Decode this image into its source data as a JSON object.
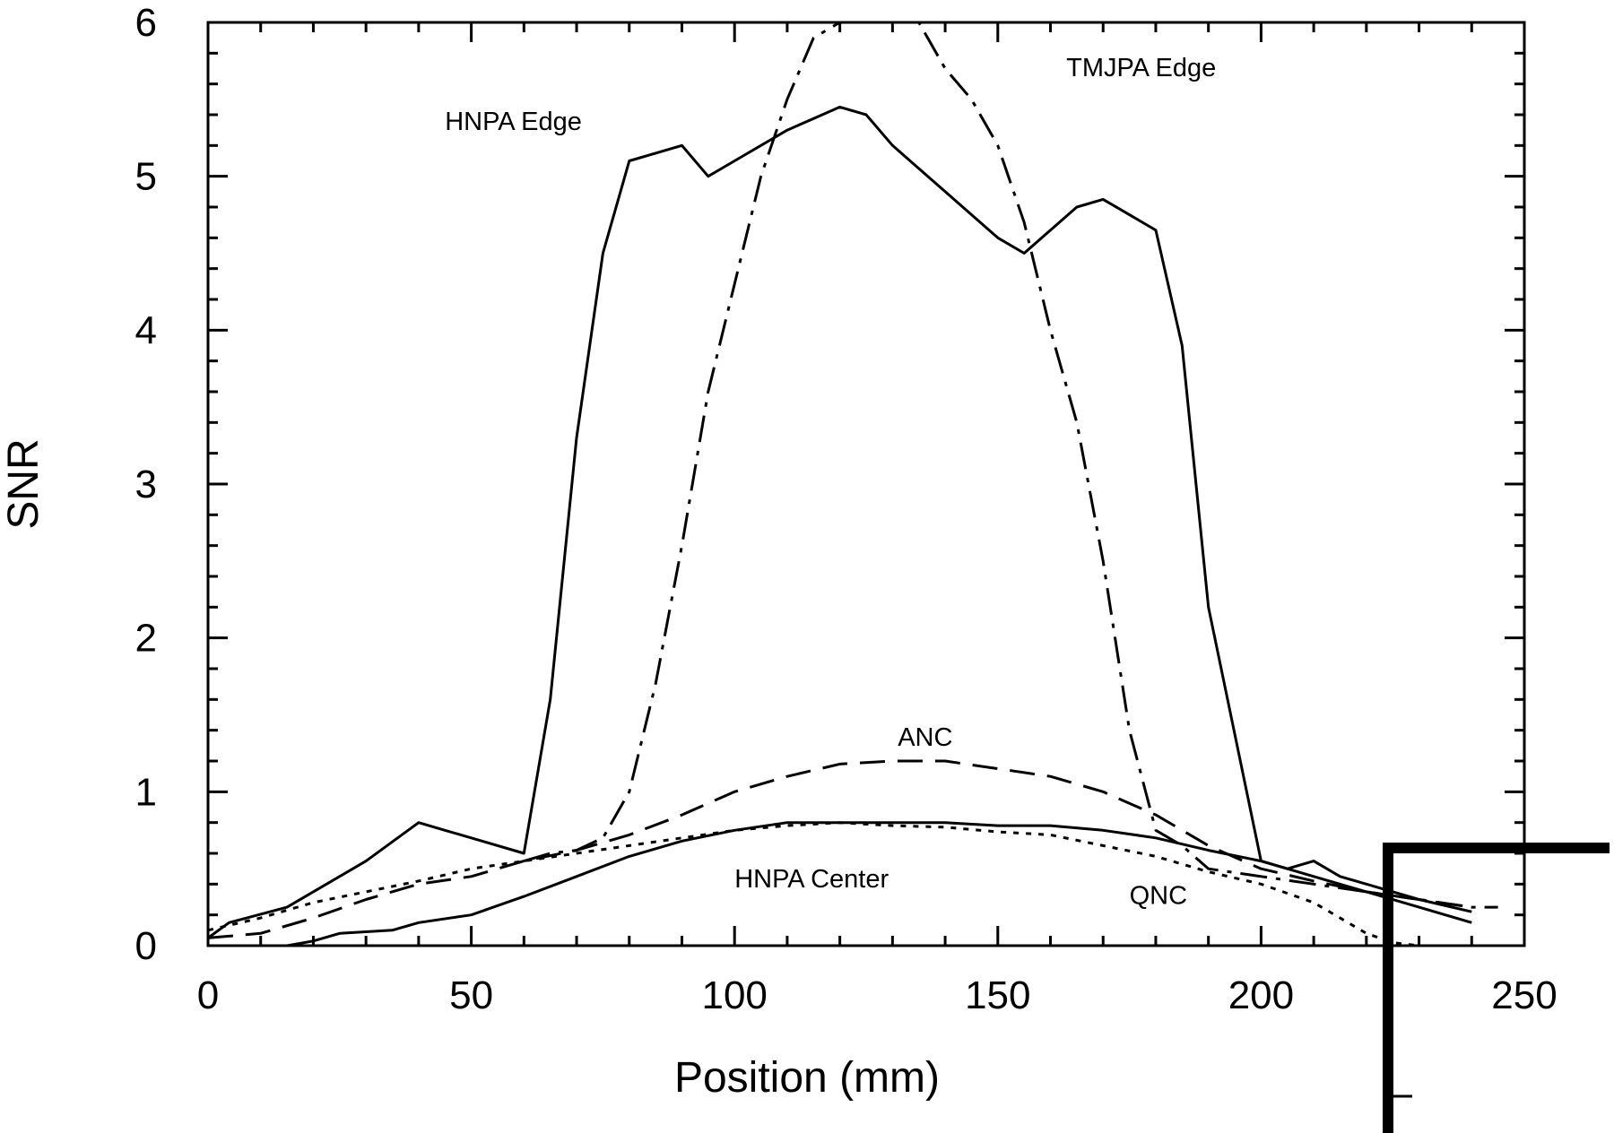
{
  "chart_data": {
    "type": "line",
    "title": "",
    "xlabel": "Position (mm)",
    "ylabel": "SNR",
    "xlim": [
      0,
      250
    ],
    "ylim": [
      0,
      6
    ],
    "x_ticks": [
      0,
      50,
      100,
      150,
      200,
      250
    ],
    "y_ticks": [
      0,
      1,
      2,
      3,
      4,
      5,
      6
    ],
    "x_tick_labels": [
      "0",
      "50",
      "100",
      "150",
      "200",
      "250"
    ],
    "y_tick_labels": [
      "0",
      "1",
      "2",
      "3",
      "4",
      "5",
      "6"
    ],
    "minor_ticks": true,
    "grid": false,
    "legend": "none",
    "line_color": "#000000",
    "series": [
      {
        "name": "HNPA Edge",
        "style": "solid",
        "x": [
          0,
          4,
          15,
          20,
          30,
          40,
          45,
          50,
          60,
          65,
          70,
          75,
          80,
          85,
          90,
          95,
          100,
          110,
          120,
          125,
          130,
          140,
          150,
          155,
          160,
          165,
          170,
          175,
          180,
          185,
          190,
          200,
          205,
          210,
          215,
          220,
          230,
          240
        ],
        "y": [
          0.05,
          0.15,
          0.25,
          0.35,
          0.55,
          0.8,
          0.75,
          0.7,
          0.6,
          1.6,
          3.3,
          4.5,
          5.1,
          5.15,
          5.2,
          5.0,
          5.1,
          5.3,
          5.45,
          5.4,
          5.2,
          4.9,
          4.6,
          4.5,
          4.65,
          4.8,
          4.85,
          4.75,
          4.65,
          3.9,
          2.2,
          0.55,
          0.5,
          0.55,
          0.45,
          0.4,
          0.3,
          0.22
        ]
      },
      {
        "name": "TMJPA Edge",
        "style": "dashdot",
        "x": [
          60,
          65,
          70,
          75,
          80,
          85,
          90,
          95,
          100,
          105,
          110,
          115,
          120,
          125,
          130,
          135,
          140,
          145,
          150,
          155,
          160,
          165,
          170,
          175,
          180,
          185,
          190,
          200,
          210,
          220,
          230,
          240,
          245
        ],
        "y": [
          0.55,
          0.6,
          0.62,
          0.7,
          1.0,
          1.7,
          2.6,
          3.6,
          4.3,
          5.0,
          5.5,
          5.9,
          6.0,
          6.0,
          6.0,
          6.0,
          5.7,
          5.5,
          5.2,
          4.7,
          4.0,
          3.4,
          2.5,
          1.4,
          0.75,
          0.65,
          0.5,
          0.45,
          0.4,
          0.35,
          0.3,
          0.25,
          0.25
        ]
      },
      {
        "name": "ANC",
        "style": "dashed",
        "x": [
          0,
          10,
          20,
          30,
          40,
          50,
          60,
          70,
          80,
          90,
          100,
          110,
          120,
          130,
          140,
          150,
          160,
          170,
          180,
          190,
          200,
          210,
          220,
          230,
          240
        ],
        "y": [
          0.05,
          0.08,
          0.18,
          0.3,
          0.4,
          0.45,
          0.55,
          0.62,
          0.72,
          0.85,
          1.0,
          1.1,
          1.18,
          1.2,
          1.2,
          1.15,
          1.1,
          1.0,
          0.85,
          0.65,
          0.5,
          0.42,
          0.35,
          0.3,
          0.25
        ]
      },
      {
        "name": "HNPA Center",
        "style": "solid",
        "x": [
          5,
          15,
          20,
          25,
          35,
          40,
          50,
          60,
          70,
          80,
          90,
          100,
          110,
          120,
          130,
          140,
          150,
          160,
          170,
          180,
          190,
          200,
          210,
          220,
          230,
          240
        ],
        "y": [
          0.0,
          0.0,
          0.03,
          0.08,
          0.1,
          0.15,
          0.2,
          0.32,
          0.45,
          0.58,
          0.68,
          0.75,
          0.8,
          0.8,
          0.8,
          0.8,
          0.78,
          0.78,
          0.75,
          0.7,
          0.62,
          0.55,
          0.45,
          0.35,
          0.25,
          0.15
        ]
      },
      {
        "name": "QNC",
        "style": "dotted",
        "x": [
          0,
          10,
          20,
          30,
          40,
          50,
          60,
          70,
          80,
          90,
          100,
          110,
          120,
          130,
          140,
          150,
          160,
          170,
          180,
          190,
          200,
          210,
          215,
          220,
          225,
          230
        ],
        "y": [
          0.1,
          0.18,
          0.28,
          0.35,
          0.42,
          0.5,
          0.55,
          0.6,
          0.65,
          0.7,
          0.75,
          0.78,
          0.8,
          0.78,
          0.77,
          0.74,
          0.72,
          0.65,
          0.58,
          0.48,
          0.4,
          0.28,
          0.18,
          0.08,
          0.02,
          0.0
        ]
      }
    ],
    "annotations": [
      {
        "text": "HNPA Edge",
        "x": 45,
        "y": 5.3
      },
      {
        "text": "TMJPA Edge",
        "x": 163,
        "y": 5.65
      },
      {
        "text": "ANC",
        "x": 131,
        "y": 1.3
      },
      {
        "text": "HNPA Center",
        "x": 100,
        "y": 0.38
      },
      {
        "text": "QNC",
        "x": 175,
        "y": 0.27
      }
    ]
  }
}
